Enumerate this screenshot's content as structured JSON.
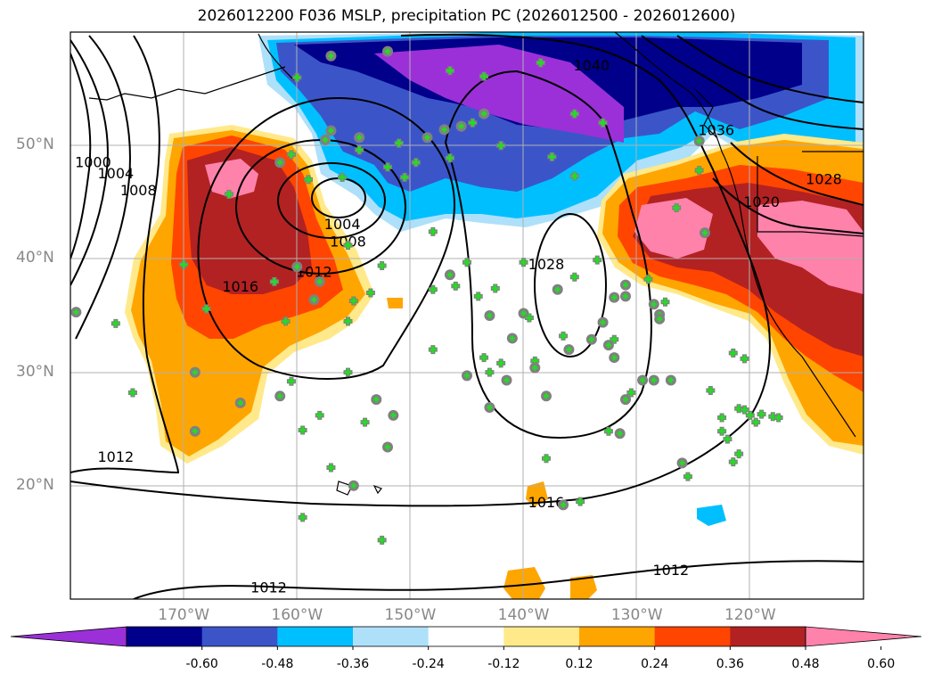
{
  "title": "2026012200 F036 MSLP, precipitation PC (2026012500 - 2026012600)",
  "lat_labels": [
    {
      "text": "50°N",
      "lat": 50
    },
    {
      "text": "40°N",
      "lat": 40
    },
    {
      "text": "30°N",
      "lat": 30
    },
    {
      "text": "20°N",
      "lat": 20
    }
  ],
  "lon_labels": [
    {
      "text": "170°W",
      "lon": -170
    },
    {
      "text": "160°W",
      "lon": -160
    },
    {
      "text": "150°W",
      "lon": -150
    },
    {
      "text": "140°W",
      "lon": -140
    },
    {
      "text": "130°W",
      "lon": -130
    },
    {
      "text": "120°W",
      "lon": -120
    }
  ],
  "map_extent": {
    "lon_min": -180,
    "lon_max": -110,
    "lat_min": 10,
    "lat_max": 60
  },
  "colorbar": {
    "levels": [
      "-0.60",
      "-0.48",
      "-0.36",
      "-0.24",
      "-0.12",
      "0.12",
      "0.24",
      "0.36",
      "0.48",
      "0.60"
    ],
    "colors": [
      "#9b30d8",
      "#00008b",
      "#3b55c9",
      "#00bfff",
      "#aee0fa",
      "#ffffff",
      "#ffe98a",
      "#ffa500",
      "#ff4500",
      "#b22222",
      "#ff82ab"
    ]
  },
  "isobar_labels": [
    {
      "text": "1000",
      "lon": -178.0,
      "lat": 48.5
    },
    {
      "text": "1004",
      "lon": -176.0,
      "lat": 47.5
    },
    {
      "text": "1008",
      "lon": -174.0,
      "lat": 46.0
    },
    {
      "text": "1004",
      "lon": -156.0,
      "lat": 43.0
    },
    {
      "text": "1008",
      "lon": -155.5,
      "lat": 41.5
    },
    {
      "text": "1012",
      "lon": -158.5,
      "lat": 38.8
    },
    {
      "text": "1016",
      "lon": -165.0,
      "lat": 37.5
    },
    {
      "text": "1028",
      "lon": -138.0,
      "lat": 39.5
    },
    {
      "text": "1012",
      "lon": -176.0,
      "lat": 22.5
    },
    {
      "text": "1016",
      "lon": -138.0,
      "lat": 18.5
    },
    {
      "text": "1012",
      "lon": -127.0,
      "lat": 12.5
    },
    {
      "text": "1012",
      "lon": -162.5,
      "lat": 11.0
    },
    {
      "text": "1020",
      "lon": -119.0,
      "lat": 45.0
    },
    {
      "text": "1028",
      "lon": -113.5,
      "lat": 47.0
    },
    {
      "text": "1036",
      "lon": -123.0,
      "lat": 51.3
    },
    {
      "text": "1040",
      "lon": -134.0,
      "lat": 57.0
    }
  ],
  "observations": [
    {
      "lon": -179.5,
      "lat": 35.3,
      "type": "circle"
    },
    {
      "lon": -176.0,
      "lat": 34.3,
      "type": "plus"
    },
    {
      "lon": -174.5,
      "lat": 28.2,
      "type": "plus"
    },
    {
      "lon": -170.0,
      "lat": 39.5,
      "type": "plus"
    },
    {
      "lon": -169.0,
      "lat": 30.0,
      "type": "circle"
    },
    {
      "lon": -169.0,
      "lat": 24.8,
      "type": "circle"
    },
    {
      "lon": -168.0,
      "lat": 35.6,
      "type": "plus"
    },
    {
      "lon": -166.0,
      "lat": 45.7,
      "type": "plus"
    },
    {
      "lon": -165.0,
      "lat": 27.3,
      "type": "circle"
    },
    {
      "lon": -161.5,
      "lat": 48.5,
      "type": "circle"
    },
    {
      "lon": -160.5,
      "lat": 49.2,
      "type": "plus"
    },
    {
      "lon": -162.0,
      "lat": 38.0,
      "type": "plus"
    },
    {
      "lon": -161.0,
      "lat": 34.5,
      "type": "plus"
    },
    {
      "lon": -161.5,
      "lat": 27.9,
      "type": "circle"
    },
    {
      "lon": -160.5,
      "lat": 29.2,
      "type": "plus"
    },
    {
      "lon": -160.0,
      "lat": 39.3,
      "type": "circle"
    },
    {
      "lon": -159.5,
      "lat": 24.9,
      "type": "plus"
    },
    {
      "lon": -159.5,
      "lat": 17.2,
      "type": "plus"
    },
    {
      "lon": -159.0,
      "lat": 47.0,
      "type": "plus"
    },
    {
      "lon": -158.5,
      "lat": 36.4,
      "type": "circle"
    },
    {
      "lon": -158.0,
      "lat": 26.2,
      "type": "plus"
    },
    {
      "lon": -158.0,
      "lat": 38.0,
      "type": "circle"
    },
    {
      "lon": -157.5,
      "lat": 50.5,
      "type": "circle"
    },
    {
      "lon": -157.0,
      "lat": 51.3,
      "type": "circle"
    },
    {
      "lon": -157.0,
      "lat": 21.6,
      "type": "plus"
    },
    {
      "lon": -156.0,
      "lat": 47.2,
      "type": "plus"
    },
    {
      "lon": -155.5,
      "lat": 41.2,
      "type": "plus"
    },
    {
      "lon": -155.5,
      "lat": 34.5,
      "type": "plus"
    },
    {
      "lon": -155.5,
      "lat": 30.0,
      "type": "plus"
    },
    {
      "lon": -155.0,
      "lat": 36.3,
      "type": "plus"
    },
    {
      "lon": -155.0,
      "lat": 20.0,
      "type": "circle"
    },
    {
      "lon": -154.5,
      "lat": 50.7,
      "type": "circle"
    },
    {
      "lon": -154.5,
      "lat": 49.6,
      "type": "plus"
    },
    {
      "lon": -154.0,
      "lat": 25.6,
      "type": "plus"
    },
    {
      "lon": -153.5,
      "lat": 37.0,
      "type": "plus"
    },
    {
      "lon": -153.0,
      "lat": 27.6,
      "type": "circle"
    },
    {
      "lon": -152.5,
      "lat": 39.4,
      "type": "plus"
    },
    {
      "lon": -152.5,
      "lat": 15.2,
      "type": "plus"
    },
    {
      "lon": -152.0,
      "lat": 48.1,
      "type": "plus"
    },
    {
      "lon": -152.0,
      "lat": 23.4,
      "type": "circle"
    },
    {
      "lon": -151.5,
      "lat": 26.2,
      "type": "circle"
    },
    {
      "lon": -151.0,
      "lat": 50.2,
      "type": "plus"
    },
    {
      "lon": -150.5,
      "lat": 47.2,
      "type": "plus"
    },
    {
      "lon": -149.5,
      "lat": 48.5,
      "type": "plus"
    },
    {
      "lon": -148.5,
      "lat": 50.7,
      "type": "circle"
    },
    {
      "lon": -148.0,
      "lat": 42.4,
      "type": "plus"
    },
    {
      "lon": -148.0,
      "lat": 37.3,
      "type": "plus"
    },
    {
      "lon": -148.0,
      "lat": 32.0,
      "type": "plus"
    },
    {
      "lon": -147.0,
      "lat": 51.4,
      "type": "circle"
    },
    {
      "lon": -146.5,
      "lat": 48.9,
      "type": "plus"
    },
    {
      "lon": -146.5,
      "lat": 38.6,
      "type": "circle"
    },
    {
      "lon": -146.0,
      "lat": 37.6,
      "type": "plus"
    },
    {
      "lon": -145.5,
      "lat": 51.7,
      "type": "circle"
    },
    {
      "lon": -145.0,
      "lat": 39.7,
      "type": "plus"
    },
    {
      "lon": -145.0,
      "lat": 29.7,
      "type": "circle"
    },
    {
      "lon": -144.0,
      "lat": 36.7,
      "type": "plus"
    },
    {
      "lon": -143.5,
      "lat": 31.3,
      "type": "plus"
    },
    {
      "lon": -143.5,
      "lat": 56.1,
      "type": "plus"
    },
    {
      "lon": -143.5,
      "lat": 52.8,
      "type": "circle"
    },
    {
      "lon": -143.0,
      "lat": 35.0,
      "type": "circle"
    },
    {
      "lon": -143.0,
      "lat": 30.0,
      "type": "plus"
    },
    {
      "lon": -143.0,
      "lat": 26.9,
      "type": "circle"
    },
    {
      "lon": -142.5,
      "lat": 37.4,
      "type": "plus"
    },
    {
      "lon": -142.0,
      "lat": 30.8,
      "type": "plus"
    },
    {
      "lon": -142.0,
      "lat": 50.0,
      "type": "plus"
    },
    {
      "lon": -141.5,
      "lat": 29.3,
      "type": "circle"
    },
    {
      "lon": -141.0,
      "lat": 33.0,
      "type": "circle"
    },
    {
      "lon": -140.0,
      "lat": 39.7,
      "type": "plus"
    },
    {
      "lon": -140.0,
      "lat": 35.2,
      "type": "circle"
    },
    {
      "lon": -139.5,
      "lat": 34.8,
      "type": "plus"
    },
    {
      "lon": -139.0,
      "lat": 31.0,
      "type": "plus"
    },
    {
      "lon": -139.0,
      "lat": 30.4,
      "type": "circle"
    },
    {
      "lon": -138.5,
      "lat": 57.3,
      "type": "plus"
    },
    {
      "lon": -138.0,
      "lat": 22.4,
      "type": "plus"
    },
    {
      "lon": -138.0,
      "lat": 27.9,
      "type": "circle"
    },
    {
      "lon": -137.5,
      "lat": 49.0,
      "type": "plus"
    },
    {
      "lon": -137.0,
      "lat": 37.3,
      "type": "circle"
    },
    {
      "lon": -136.5,
      "lat": 33.2,
      "type": "plus"
    },
    {
      "lon": -136.0,
      "lat": 32.0,
      "type": "circle"
    },
    {
      "lon": -136.5,
      "lat": 18.3,
      "type": "circle"
    },
    {
      "lon": -135.5,
      "lat": 52.8,
      "type": "plus"
    },
    {
      "lon": -135.5,
      "lat": 47.3,
      "type": "plus"
    },
    {
      "lon": -135.5,
      "lat": 38.4,
      "type": "plus"
    },
    {
      "lon": -135.0,
      "lat": 18.6,
      "type": "plus"
    },
    {
      "lon": -134.0,
      "lat": 32.9,
      "type": "circle"
    },
    {
      "lon": -133.0,
      "lat": 52.0,
      "type": "plus"
    },
    {
      "lon": -133.5,
      "lat": 39.9,
      "type": "plus"
    },
    {
      "lon": -133.0,
      "lat": 34.4,
      "type": "circle"
    },
    {
      "lon": -132.5,
      "lat": 32.4,
      "type": "circle"
    },
    {
      "lon": -132.5,
      "lat": 24.8,
      "type": "plus"
    },
    {
      "lon": -132.0,
      "lat": 32.9,
      "type": "plus"
    },
    {
      "lon": -132.0,
      "lat": 31.3,
      "type": "circle"
    },
    {
      "lon": -132.0,
      "lat": 36.6,
      "type": "circle"
    },
    {
      "lon": -131.5,
      "lat": 24.6,
      "type": "circle"
    },
    {
      "lon": -131.0,
      "lat": 37.7,
      "type": "circle"
    },
    {
      "lon": -131.0,
      "lat": 36.7,
      "type": "circle"
    },
    {
      "lon": -131.0,
      "lat": 27.6,
      "type": "circle"
    },
    {
      "lon": -130.5,
      "lat": 28.2,
      "type": "plus"
    },
    {
      "lon": -129.5,
      "lat": 29.3,
      "type": "circle"
    },
    {
      "lon": -129.0,
      "lat": 38.2,
      "type": "plus"
    },
    {
      "lon": -128.5,
      "lat": 29.3,
      "type": "circle"
    },
    {
      "lon": -128.5,
      "lat": 36.0,
      "type": "circle"
    },
    {
      "lon": -128.0,
      "lat": 35.1,
      "type": "circle"
    },
    {
      "lon": -128.0,
      "lat": 34.7,
      "type": "circle"
    },
    {
      "lon": -127.5,
      "lat": 36.2,
      "type": "plus"
    },
    {
      "lon": -127.0,
      "lat": 29.3,
      "type": "circle"
    },
    {
      "lon": -126.0,
      "lat": 22.0,
      "type": "circle"
    },
    {
      "lon": -126.5,
      "lat": 44.5,
      "type": "plus"
    },
    {
      "lon": -125.5,
      "lat": 20.8,
      "type": "plus"
    },
    {
      "lon": -124.5,
      "lat": 50.4,
      "type": "circle"
    },
    {
      "lon": -124.5,
      "lat": 47.8,
      "type": "plus"
    },
    {
      "lon": -124.0,
      "lat": 42.3,
      "type": "circle"
    },
    {
      "lon": -123.5,
      "lat": 28.4,
      "type": "plus"
    },
    {
      "lon": -122.5,
      "lat": 26.0,
      "type": "plus"
    },
    {
      "lon": -122.5,
      "lat": 24.8,
      "type": "plus"
    },
    {
      "lon": -122.0,
      "lat": 24.1,
      "type": "plus"
    },
    {
      "lon": -121.5,
      "lat": 31.7,
      "type": "plus"
    },
    {
      "lon": -121.5,
      "lat": 22.1,
      "type": "plus"
    },
    {
      "lon": -121.0,
      "lat": 26.8,
      "type": "plus"
    },
    {
      "lon": -121.0,
      "lat": 22.8,
      "type": "plus"
    },
    {
      "lon": -120.5,
      "lat": 31.2,
      "type": "plus"
    },
    {
      "lon": -120.5,
      "lat": 26.7,
      "type": "plus"
    },
    {
      "lon": -120.0,
      "lat": 26.2,
      "type": "plus"
    },
    {
      "lon": -119.5,
      "lat": 25.6,
      "type": "plus"
    },
    {
      "lon": -119.0,
      "lat": 26.3,
      "type": "plus"
    },
    {
      "lon": -118.0,
      "lat": 26.1,
      "type": "plus"
    },
    {
      "lon": -117.5,
      "lat": 26.0,
      "type": "plus"
    },
    {
      "lon": -157.0,
      "lat": 57.9,
      "type": "circle"
    },
    {
      "lon": -160.0,
      "lat": 56.0,
      "type": "plus"
    },
    {
      "lon": -152.0,
      "lat": 58.3,
      "type": "circle"
    },
    {
      "lon": -146.5,
      "lat": 56.6,
      "type": "plus"
    },
    {
      "lon": -144.5,
      "lat": 52.0,
      "type": "plus"
    }
  ]
}
